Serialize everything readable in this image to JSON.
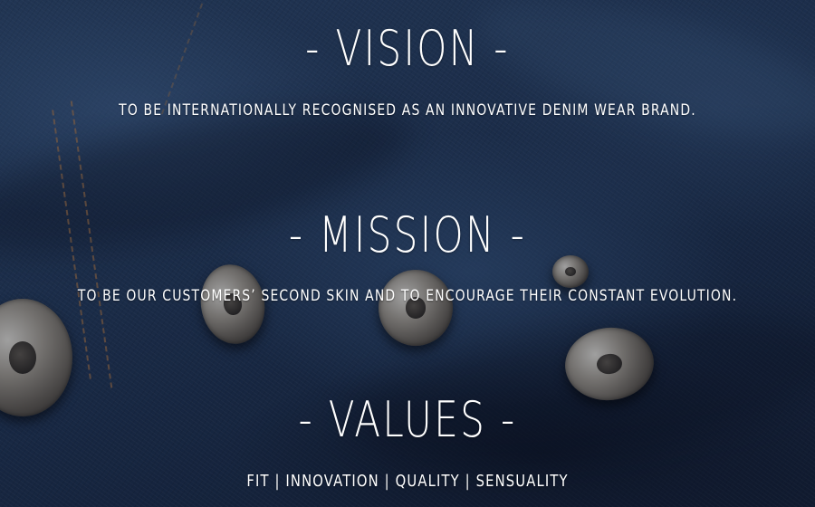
{
  "sections": {
    "vision": {
      "heading": "- VISION -",
      "statement": "TO BE INTERNATIONALLY RECOGNISED AS AN INNOVATIVE DENIM WEAR BRAND."
    },
    "mission": {
      "heading": "- MISSION -",
      "statement": "TO BE OUR CUSTOMERS’ SECOND SKIN AND TO ENCOURAGE THEIR CONSTANT EVOLUTION."
    },
    "values": {
      "heading": "- VALUES -",
      "statement": "FIT | INNOVATION | QUALITY | SENSUALITY"
    }
  },
  "colors": {
    "text": "#ffffff",
    "background": "#1c2b44"
  }
}
